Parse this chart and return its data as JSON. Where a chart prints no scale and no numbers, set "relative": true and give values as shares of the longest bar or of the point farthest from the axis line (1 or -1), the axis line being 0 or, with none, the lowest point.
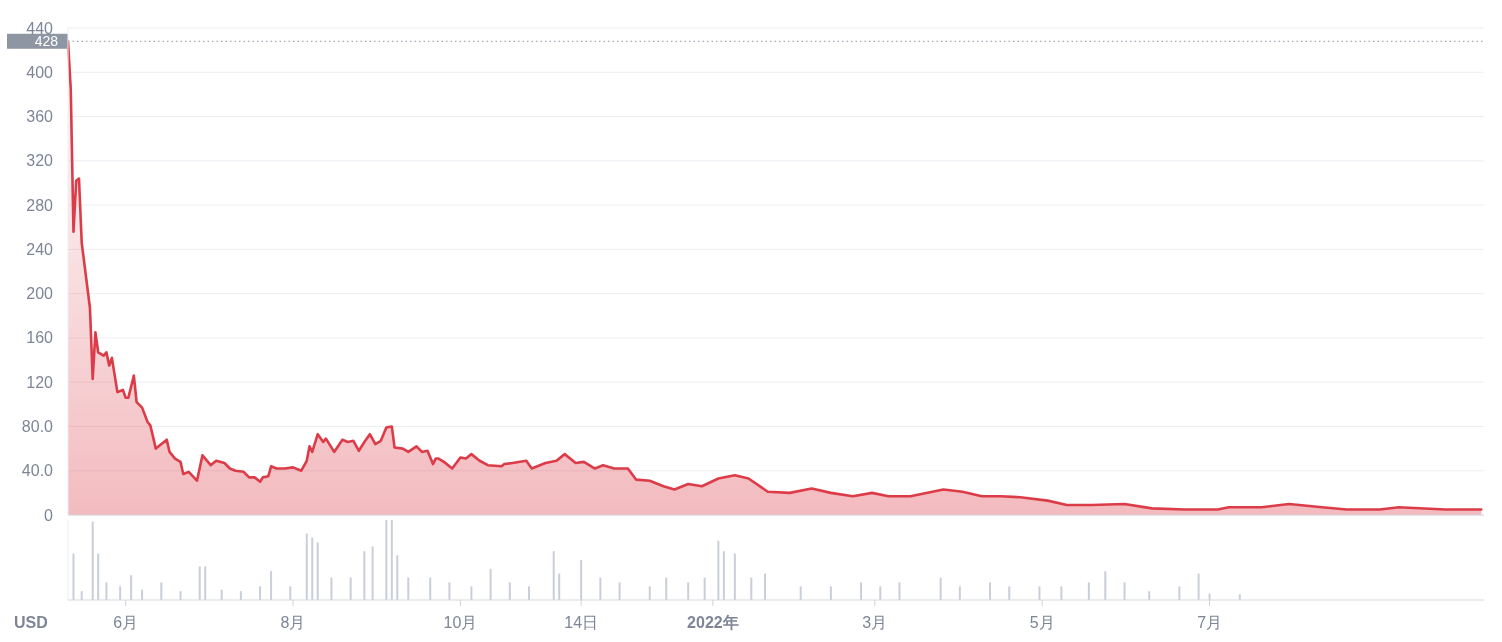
{
  "chart_data": [
    {
      "type": "area",
      "xlim": [
        "2021-05-11",
        "2022-10-09"
      ],
      "ylim": [
        0,
        440
      ],
      "yticks": [
        0,
        {
          "value": 40,
          "label": "40.0"
        },
        {
          "value": 80,
          "label": "80.0"
        },
        120,
        160,
        200,
        240,
        280,
        320,
        360,
        400,
        440
      ],
      "tick_labels": "y",
      "grid": "y",
      "line_style": "solid",
      "marker": "none",
      "ref_lines": [
        {
          "axis": "y",
          "value": 428,
          "label": "428",
          "color": "#8f96a3",
          "line_style": "dotted"
        }
      ],
      "series": [
        {
          "color": "#dc3c48",
          "x": [
            "2021-05-11",
            "2021-05-12",
            "2021-05-13",
            "2021-05-14",
            "2021-05-15",
            "2021-05-16",
            "2021-05-19",
            "2021-05-20",
            "2021-05-21",
            "2021-05-22",
            "2021-05-24",
            "2021-05-25",
            "2021-05-26",
            "2021-05-27",
            "2021-05-29",
            "2021-05-31",
            "2021-06-01",
            "2021-06-02",
            "2021-06-04",
            "2021-06-05",
            "2021-06-07",
            "2021-06-09",
            "2021-06-10",
            "2021-06-12",
            "2021-06-16",
            "2021-06-17",
            "2021-06-19",
            "2021-06-21",
            "2021-06-22",
            "2021-06-24",
            "2021-06-27",
            "2021-06-29",
            "2021-07-02",
            "2021-07-04",
            "2021-07-07",
            "2021-07-09",
            "2021-07-11",
            "2021-07-14",
            "2021-07-16",
            "2021-07-18",
            "2021-07-20",
            "2021-07-21",
            "2021-07-23",
            "2021-07-24",
            "2021-07-26",
            "2021-07-29",
            "2021-08-01",
            "2021-08-04",
            "2021-08-06",
            "2021-08-07",
            "2021-08-08",
            "2021-08-10",
            "2021-08-12",
            "2021-08-13",
            "2021-08-16",
            "2021-08-19",
            "2021-08-21",
            "2021-08-23",
            "2021-08-25",
            "2021-08-27",
            "2021-08-29",
            "2021-08-31",
            "2021-09-02",
            "2021-09-04",
            "2021-09-06",
            "2021-09-07",
            "2021-09-10",
            "2021-09-12",
            "2021-09-15",
            "2021-09-17",
            "2021-09-19",
            "2021-09-21",
            "2021-09-22",
            "2021-09-23",
            "2021-09-25",
            "2021-09-28",
            "2021-10-01",
            "2021-10-03",
            "2021-10-05",
            "2021-10-08",
            "2021-10-11",
            "2021-10-16",
            "2021-10-17",
            "2021-10-20",
            "2021-10-25",
            "2021-10-27",
            "2021-11-01",
            "2021-11-05",
            "2021-11-08",
            "2021-11-12",
            "2021-11-15",
            "2021-11-19",
            "2021-11-22",
            "2021-11-26",
            "2021-12-01",
            "2021-12-04",
            "2021-12-09",
            "2021-12-14",
            "2021-12-18",
            "2021-12-23",
            "2021-12-28",
            "2022-01-03",
            "2022-01-09",
            "2022-01-14",
            "2022-01-21",
            "2022-01-29",
            "2022-02-06",
            "2022-02-13",
            "2022-02-21",
            "2022-02-28",
            "2022-03-06",
            "2022-03-14",
            "2022-03-26",
            "2022-04-02",
            "2022-04-09",
            "2022-04-16",
            "2022-04-23",
            "2022-05-03",
            "2022-05-10",
            "2022-05-19",
            "2022-05-31",
            "2022-06-10",
            "2022-06-22",
            "2022-07-04",
            "2022-07-08",
            "2022-07-20",
            "2022-07-30",
            "2022-08-11",
            "2022-08-20",
            "2022-09-01",
            "2022-09-08",
            "2022-09-25",
            "2022-10-08"
          ],
          "values": [
            428,
            385,
            256,
            302,
            304,
            246,
            187,
            123,
            165,
            147,
            144,
            147,
            135,
            142,
            111,
            113,
            106,
            106,
            126,
            102,
            97,
            84,
            81,
            60,
            68,
            57,
            51,
            48,
            37,
            39,
            31,
            54,
            45,
            49,
            47,
            42,
            40,
            39,
            34,
            34,
            30,
            34,
            35,
            44,
            42,
            42,
            43,
            40,
            49,
            62,
            57,
            73,
            66,
            69,
            57,
            68,
            66,
            67,
            58,
            66,
            73,
            64,
            67,
            79,
            80,
            61,
            60,
            57,
            62,
            57,
            58,
            46,
            51,
            51,
            48,
            42,
            52,
            51,
            55,
            49,
            45,
            44,
            46,
            47,
            49,
            42,
            47,
            49,
            55,
            47,
            48,
            42,
            45,
            42,
            42,
            32,
            31,
            26,
            23,
            28,
            26,
            33,
            36,
            33,
            21,
            20,
            24,
            20,
            17,
            20,
            17,
            17,
            23,
            21,
            17,
            17,
            16,
            13,
            9,
            9,
            10,
            6,
            5,
            5,
            7,
            7,
            10,
            7,
            5,
            5,
            7,
            5,
            5
          ]
        }
      ]
    },
    {
      "type": "bar",
      "relative": true,
      "ylabel": "USD",
      "xlim": [
        "2021-05-11",
        "2022-10-09"
      ],
      "xticks": [
        {
          "value": "2021-06-01",
          "label": "6月"
        },
        {
          "value": "2021-08-01",
          "label": "8月"
        },
        {
          "value": "2021-10-01",
          "label": "10月"
        },
        {
          "value": "2021-11-14",
          "label": "14日"
        },
        {
          "value": "2022-01-01",
          "label": "2022年"
        },
        {
          "value": "2022-03-01",
          "label": "3月"
        },
        {
          "value": "2022-05-01",
          "label": "5月"
        },
        {
          "value": "2022-07-01",
          "label": "7月"
        }
      ],
      "series": [
        {
          "color": "#c9ced8",
          "x": [
            "2021-05-13",
            "2021-05-16",
            "2021-05-20",
            "2021-05-22",
            "2021-05-25",
            "2021-05-30",
            "2021-06-03",
            "2021-06-07",
            "2021-06-14",
            "2021-06-21",
            "2021-06-28",
            "2021-06-30",
            "2021-07-06",
            "2021-07-13",
            "2021-07-20",
            "2021-07-24",
            "2021-07-31",
            "2021-08-06",
            "2021-08-08",
            "2021-08-10",
            "2021-08-15",
            "2021-08-22",
            "2021-08-27",
            "2021-08-30",
            "2021-09-04",
            "2021-09-06",
            "2021-09-08",
            "2021-09-12",
            "2021-09-20",
            "2021-09-27",
            "2021-10-05",
            "2021-10-12",
            "2021-10-19",
            "2021-10-26",
            "2021-11-04",
            "2021-11-06",
            "2021-11-14",
            "2021-11-21",
            "2021-11-28",
            "2021-12-09",
            "2021-12-15",
            "2021-12-23",
            "2021-12-29",
            "2022-01-03",
            "2022-01-05",
            "2022-01-09",
            "2022-01-15",
            "2022-01-20",
            "2022-02-02",
            "2022-02-13",
            "2022-02-24",
            "2022-03-03",
            "2022-03-10",
            "2022-03-25",
            "2022-04-01",
            "2022-04-12",
            "2022-04-19",
            "2022-04-30",
            "2022-05-08",
            "2022-05-18",
            "2022-05-24",
            "2022-05-31",
            "2022-06-09",
            "2022-06-20",
            "2022-06-27",
            "2022-07-01",
            "2022-07-12"
          ],
          "values": [
            0.58,
            0.11,
            0.98,
            0.58,
            0.22,
            0.17,
            0.31,
            0.13,
            0.22,
            0.11,
            0.42,
            0.42,
            0.13,
            0.11,
            0.17,
            0.36,
            0.17,
            0.83,
            0.78,
            0.72,
            0.28,
            0.28,
            0.61,
            0.67,
            1,
            1,
            0.56,
            0.28,
            0.28,
            0.22,
            0.17,
            0.39,
            0.22,
            0.17,
            0.61,
            0.33,
            0.5,
            0.28,
            0.22,
            0.17,
            0.28,
            0.22,
            0.28,
            0.74,
            0.61,
            0.58,
            0.28,
            0.33,
            0.17,
            0.17,
            0.22,
            0.17,
            0.22,
            0.28,
            0.17,
            0.22,
            0.17,
            0.17,
            0.17,
            0.22,
            0.36,
            0.22,
            0.11,
            0.17,
            0.33,
            0.08,
            0.07
          ]
        }
      ]
    }
  ]
}
